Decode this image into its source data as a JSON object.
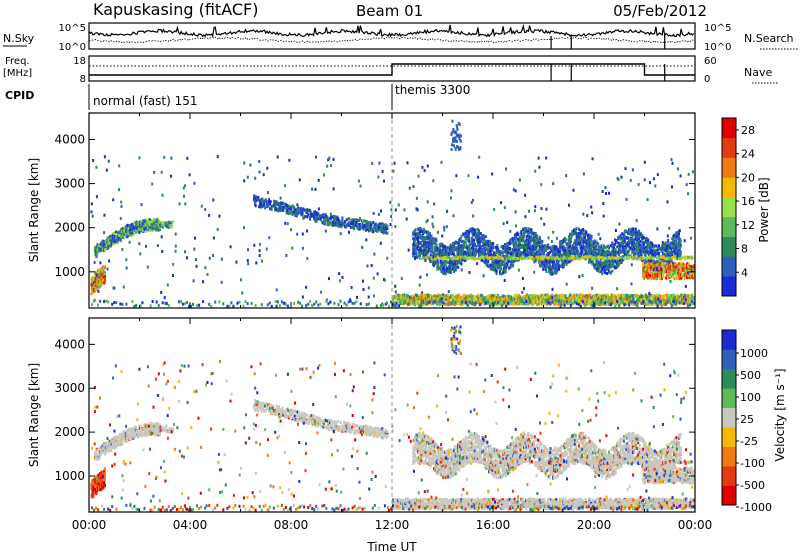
{
  "header": {
    "station": "Kapuskasing (fitACF)",
    "beam": "Beam 01",
    "date": "05/Feb/2012"
  },
  "noise_panel": {
    "left_label": "N.Sky",
    "right_label": "N.Search",
    "left_top_tick": "10^5",
    "left_bottom_tick": "10^0",
    "right_top_tick": "10^5",
    "right_bottom_tick": "10^0"
  },
  "freq_panel": {
    "left_label_line1": "Freq.",
    "left_label_line2": "[MHz]",
    "right_label": "Nave",
    "left_top_tick": "18",
    "left_bottom_tick": "8",
    "right_top_tick": "60",
    "right_bottom_tick": "0"
  },
  "cpid_panel": {
    "label": "CPID",
    "modes": [
      "normal (fast) 151",
      "themis 3300"
    ]
  },
  "colors": {
    "power": [
      "#1a2bd6",
      "#2f5fb8",
      "#2e8a5c",
      "#5fb85a",
      "#9be04a",
      "#f5b800",
      "#f07a10",
      "#e53a10",
      "#e00000"
    ],
    "velocity": [
      "#1a2bd6",
      "#2f5fb8",
      "#2e8a5c",
      "#5fb85a",
      "#c8c8c0",
      "#f5b800",
      "#f07a10",
      "#e53a10",
      "#e00000"
    ],
    "ground_scatter": "#c8c8c0"
  },
  "chart_data": [
    {
      "type": "heatmap",
      "name": "power",
      "xlabel": "",
      "ylabel": "Slant Range [km]",
      "ylim": [
        180,
        4600
      ],
      "xlim_hours": [
        0,
        24
      ],
      "yticks": [
        "1000",
        "2000",
        "3000",
        "4000"
      ],
      "colorbar_label": "Power [dB]",
      "colorbar_ticks": [
        "4",
        "8",
        "12",
        "16",
        "20",
        "24",
        "28"
      ],
      "colorbar_range": [
        0,
        30
      ]
    },
    {
      "type": "heatmap",
      "name": "velocity",
      "xlabel": "Time UT",
      "ylabel": "Slant Range [km]",
      "ylim": [
        180,
        4600
      ],
      "xlim_hours": [
        0,
        24
      ],
      "xticks": [
        "00:00",
        "04:00",
        "08:00",
        "12:00",
        "16:00",
        "20:00",
        "00:00"
      ],
      "yticks": [
        "1000",
        "2000",
        "3000",
        "4000"
      ],
      "colorbar_label": "Velocity [m s⁻¹]",
      "colorbar_ticks": [
        "1000",
        "500",
        "100",
        "25",
        "-25",
        "-100",
        "-500",
        "-1000"
      ]
    }
  ]
}
